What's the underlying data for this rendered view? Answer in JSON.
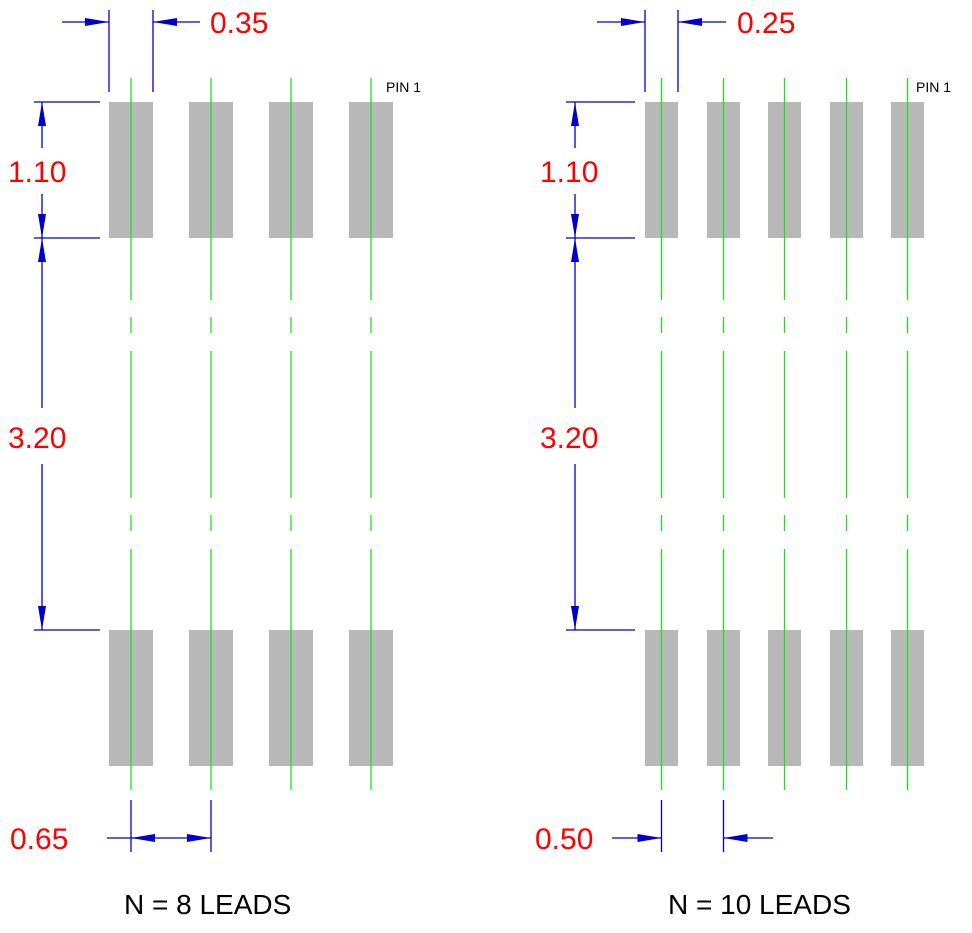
{
  "colors": {
    "background": "#ffffff",
    "pad": "#b8b8b8",
    "centerline": "#22dd22",
    "dimension_line": "#0000cc",
    "dimension_text": "#ff0000",
    "label_text": "#000000"
  },
  "left_footprint": {
    "caption": "N = 8 LEADS",
    "pin1_label": "PIN 1",
    "pad_width_dim": "0.35",
    "pad_length_dim": "1.10",
    "row_gap_dim": "3.20",
    "pitch_dim": "0.65",
    "pads_per_row": 4
  },
  "right_footprint": {
    "caption": "N = 10 LEADS",
    "pin1_label": "PIN 1",
    "pad_width_dim": "0.25",
    "pad_length_dim": "1.10",
    "row_gap_dim": "3.20",
    "pitch_dim": "0.50",
    "pads_per_row": 5
  }
}
